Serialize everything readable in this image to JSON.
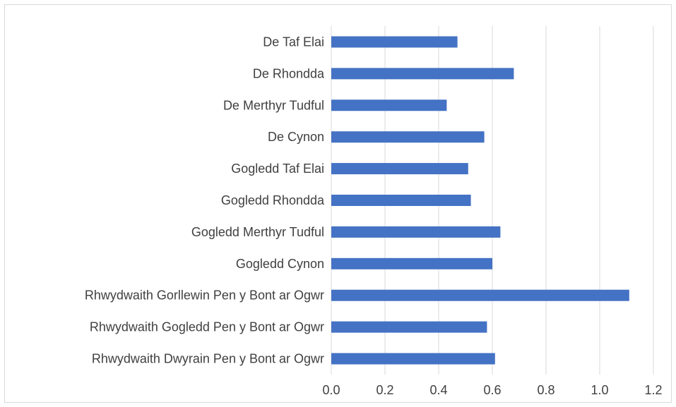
{
  "chart_data": {
    "type": "bar",
    "orientation": "horizontal",
    "categories": [
      "De Taf Elai",
      "De Rhondda",
      "De Merthyr Tudful",
      "De Cynon",
      "Gogledd Taf Elai",
      "Gogledd Rhondda",
      "Gogledd Merthyr Tudful",
      "Gogledd Cynon",
      "Rhwydwaith Gorllewin Pen y Bont ar Ogwr",
      "Rhwydwaith Gogledd Pen y Bont ar Ogwr",
      "Rhwydwaith Dwyrain Pen y Bont ar Ogwr"
    ],
    "values": [
      0.47,
      0.68,
      0.43,
      0.57,
      0.51,
      0.52,
      0.63,
      0.6,
      1.11,
      0.58,
      0.61
    ],
    "title": "",
    "xlabel": "",
    "ylabel": "",
    "xlim": [
      0,
      1.2
    ],
    "xticks": [
      "0.0",
      "0.2",
      "0.4",
      "0.6",
      "0.8",
      "1.0",
      "1.2"
    ],
    "grid": "vertical",
    "legend": "none",
    "bar_color": "#4472c4",
    "grid_color": "#d9d9d9",
    "text_color": "#404040"
  }
}
